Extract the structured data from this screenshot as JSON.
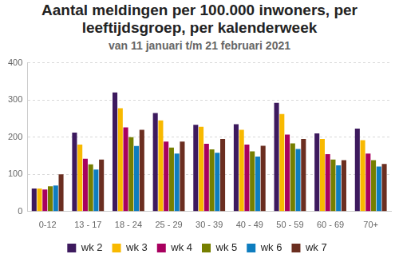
{
  "chart_data": {
    "type": "bar",
    "title": "Aantal meldingen per 100.000 inwoners, per leeftijdsgroep, per kalenderweek",
    "subtitle": "van 11 januari t/m 21 februari 2021",
    "categories": [
      "0-12",
      "13 - 17",
      "18 - 24",
      "25 - 29",
      "30 - 39",
      "40 - 49",
      "50 - 59",
      "60 - 69",
      "70+"
    ],
    "series": [
      {
        "name": "wk 2",
        "color": "#3d1a5e",
        "values": [
          62,
          212,
          320,
          265,
          233,
          235,
          292,
          210,
          223
        ]
      },
      {
        "name": "wk 3",
        "color": "#f8b900",
        "values": [
          62,
          180,
          278,
          245,
          228,
          220,
          262,
          195,
          192
        ]
      },
      {
        "name": "wk 4",
        "color": "#a8005f",
        "values": [
          59,
          142,
          226,
          188,
          182,
          180,
          207,
          154,
          156
        ]
      },
      {
        "name": "wk 5",
        "color": "#767f00",
        "values": [
          68,
          127,
          200,
          172,
          167,
          162,
          183,
          140,
          138
        ]
      },
      {
        "name": "wk 6",
        "color": "#0e7dbf",
        "values": [
          70,
          113,
          176,
          156,
          158,
          148,
          168,
          124,
          121
        ]
      },
      {
        "name": "wk 7",
        "color": "#6b2e20",
        "values": [
          100,
          140,
          220,
          188,
          195,
          177,
          195,
          138,
          128
        ]
      }
    ],
    "ylim": [
      0,
      400
    ],
    "yticks": [
      0,
      100,
      200,
      300,
      400
    ],
    "grid": true,
    "legend": "bottom"
  }
}
